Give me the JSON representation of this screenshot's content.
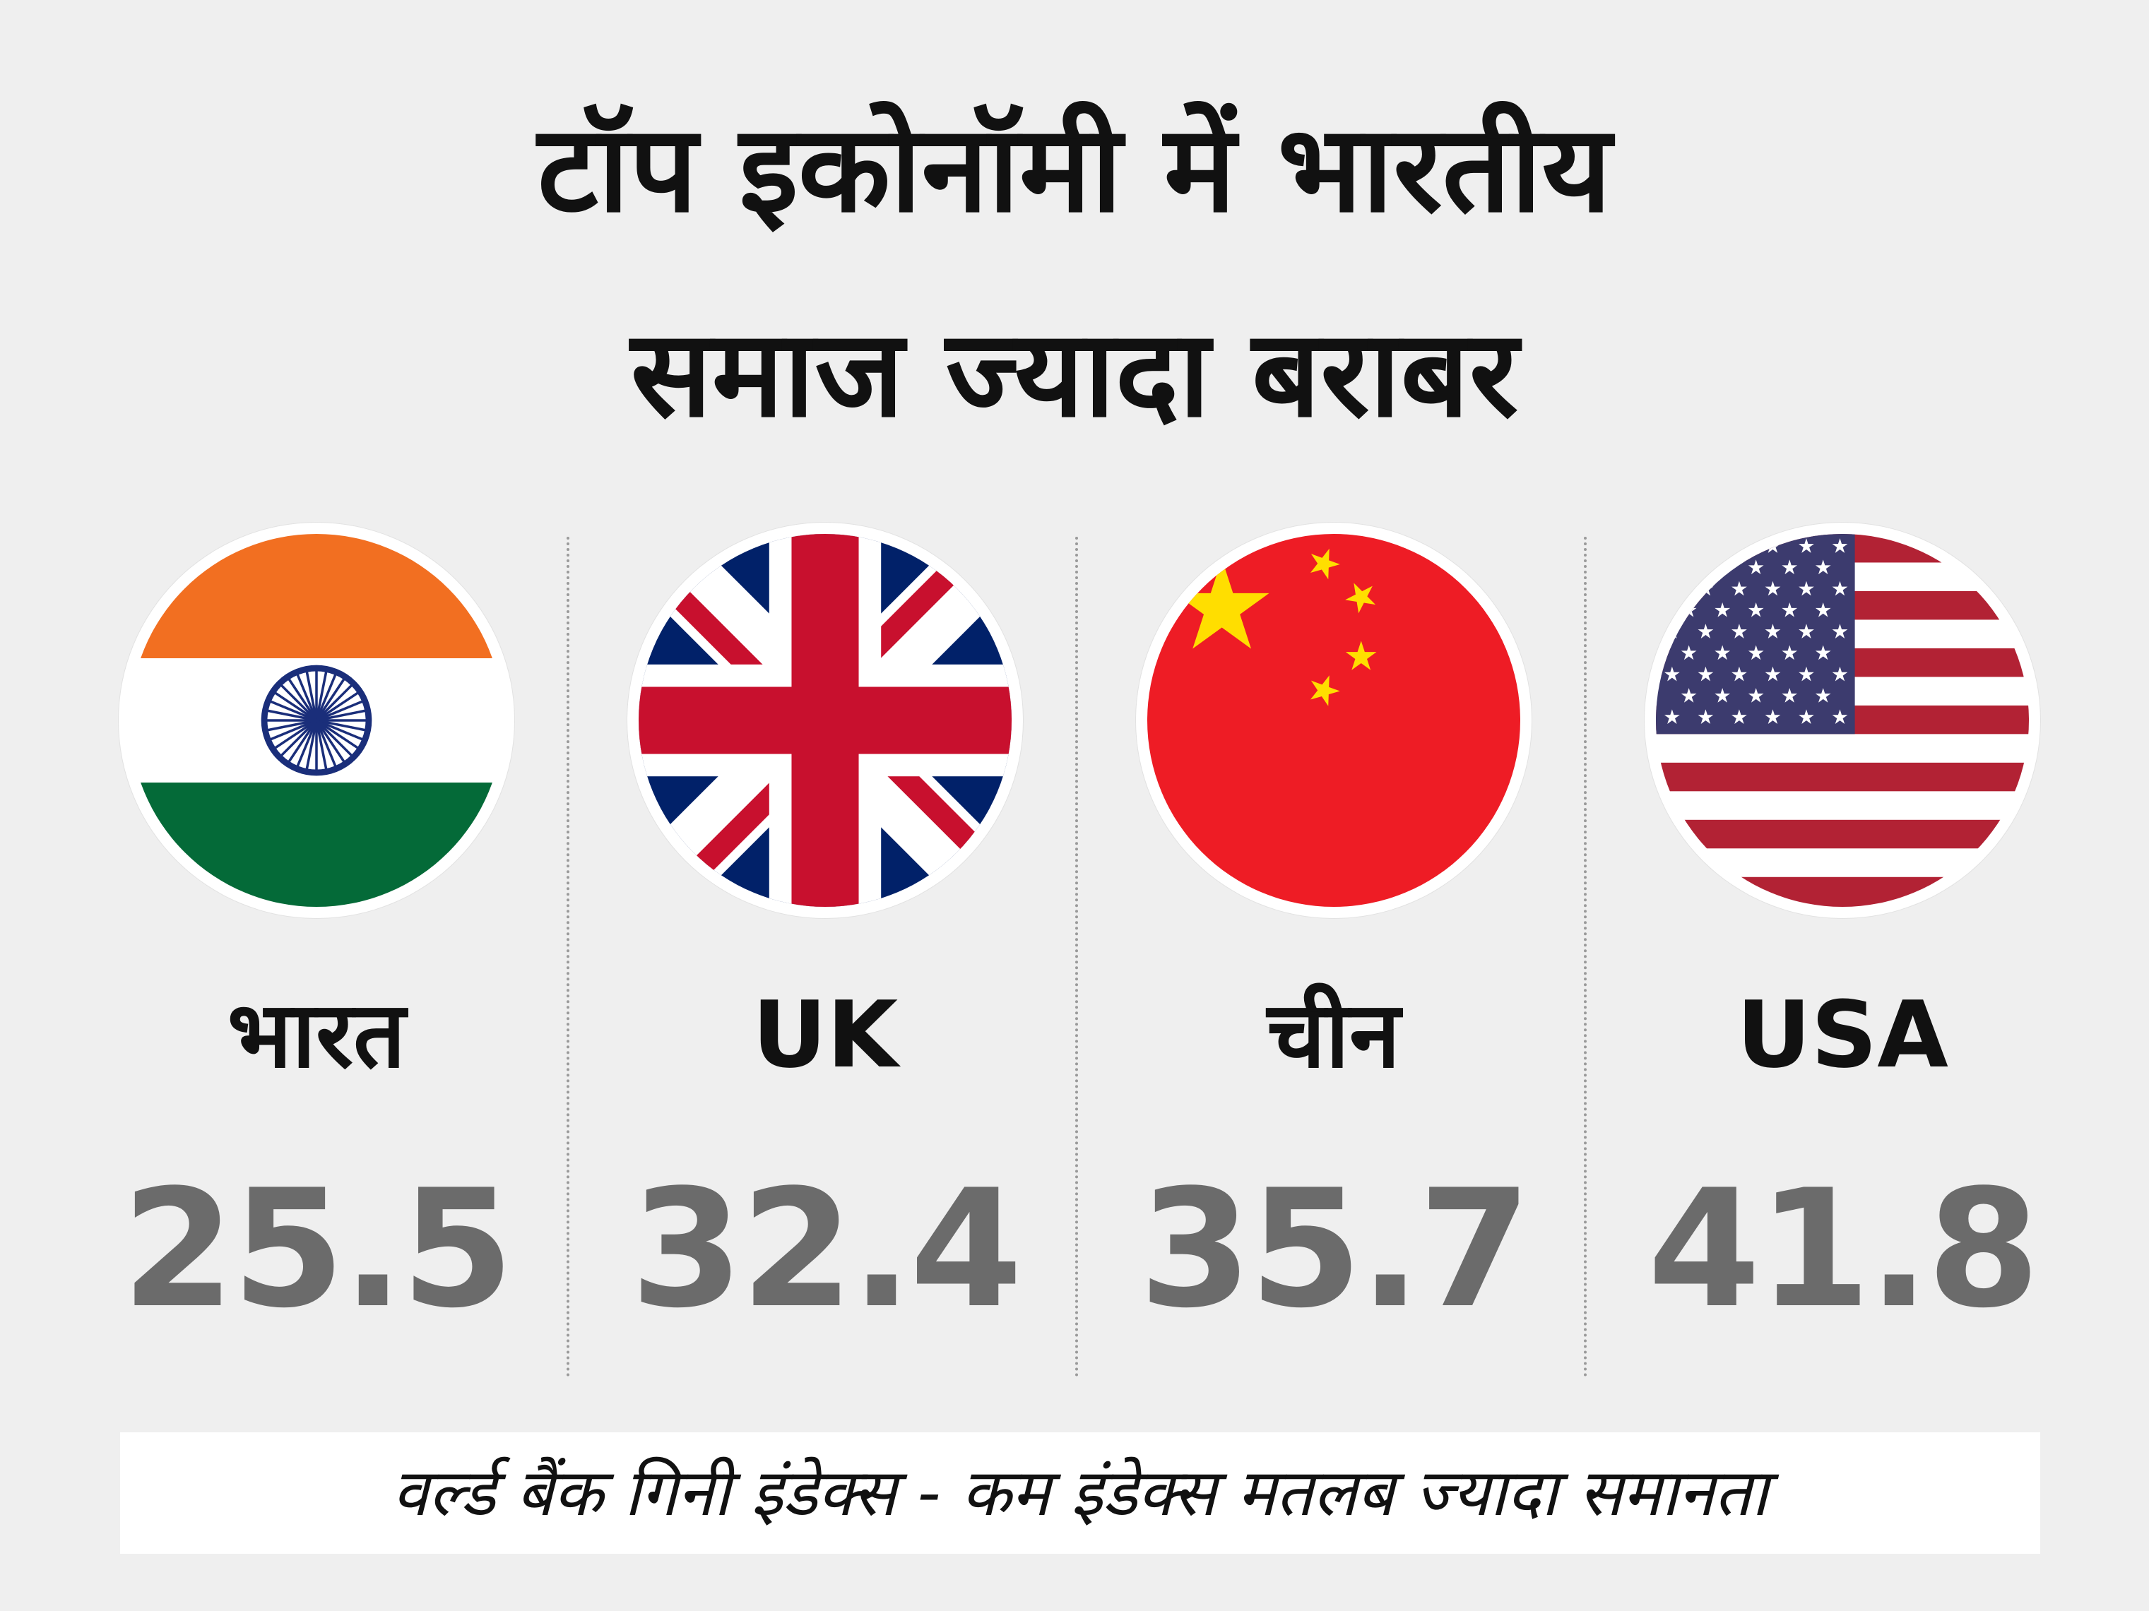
{
  "title": {
    "line1": "टॉप इकोनॉमी में भारतीय",
    "line2": "समाज ज्यादा बराबर"
  },
  "countries": [
    {
      "name": "भारत",
      "value": "25.5",
      "flag": "india-flag-icon"
    },
    {
      "name": "UK",
      "value": "32.4",
      "flag": "uk-flag-icon"
    },
    {
      "name": "चीन",
      "value": "35.7",
      "flag": "china-flag-icon"
    },
    {
      "name": "USA",
      "value": "41.8",
      "flag": "usa-flag-icon"
    }
  ],
  "footer": {
    "text": "वर्ल्ड बैंक गिनी इंडेक्स - कम इंडेक्स मतलब ज्यादा समानता"
  },
  "colors": {
    "background": "#efefef",
    "value_text": "#6b6b6b",
    "india_saffron": "#f26f21",
    "india_green": "#046a38",
    "india_chakra": "#1a2e7a",
    "uk_blue": "#012169",
    "uk_red": "#c8102e",
    "china_red": "#ee1c25",
    "china_yellow": "#ffde00",
    "usa_red": "#b22234",
    "usa_blue": "#3c3b6e"
  }
}
